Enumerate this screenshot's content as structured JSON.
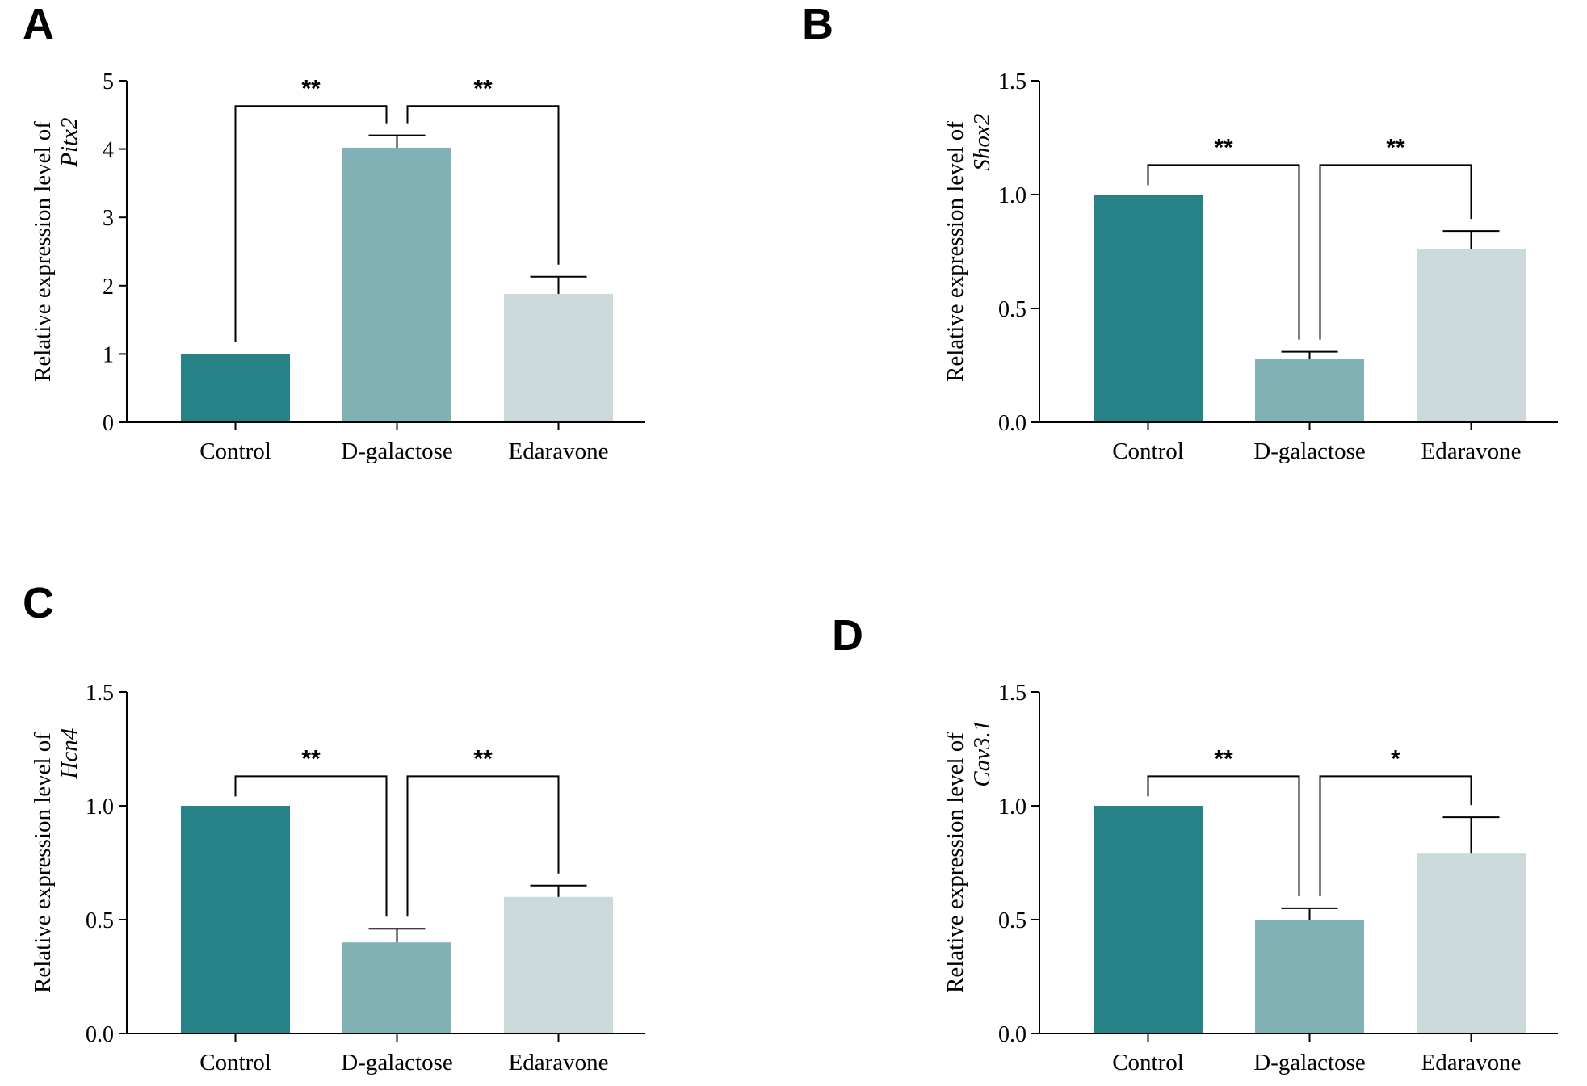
{
  "chart_data": [
    {
      "panel": "A",
      "type": "bar",
      "ylabel": "Relative expression level of",
      "gene": "Pitx2",
      "categories": [
        "Control",
        "D-galactose",
        "Edaravone"
      ],
      "values": [
        1.0,
        4.02,
        1.88
      ],
      "errors": [
        0.0,
        0.18,
        0.25
      ],
      "colors": [
        "#268286",
        "#80b1b4",
        "#ccd9db"
      ],
      "ylim": [
        0,
        5
      ],
      "yticks": [
        0,
        1,
        2,
        3,
        4,
        5
      ],
      "ytick_labels": [
        "0",
        "1",
        "2",
        "3",
        "4",
        "5"
      ],
      "significance": [
        {
          "from": 0,
          "to": 1,
          "label": "**"
        },
        {
          "from": 1,
          "to": 2,
          "label": "**"
        }
      ]
    },
    {
      "panel": "B",
      "type": "bar",
      "ylabel": "Relative expression level of",
      "gene": "Shox2",
      "categories": [
        "Control",
        "D-galactose",
        "Edaravone"
      ],
      "values": [
        1.0,
        0.28,
        0.76
      ],
      "errors": [
        0.0,
        0.03,
        0.08
      ],
      "colors": [
        "#268286",
        "#80b1b4",
        "#ccd9db"
      ],
      "ylim": [
        0,
        1.5
      ],
      "yticks": [
        0,
        0.5,
        1.0,
        1.5
      ],
      "ytick_labels": [
        "0.0",
        "0.5",
        "1.0",
        "1.5"
      ],
      "significance": [
        {
          "from": 0,
          "to": 1,
          "label": "**"
        },
        {
          "from": 1,
          "to": 2,
          "label": "**"
        }
      ]
    },
    {
      "panel": "C",
      "type": "bar",
      "ylabel": "Relative expression level of",
      "gene": "Hcn4",
      "categories": [
        "Control",
        "D-galactose",
        "Edaravone"
      ],
      "values": [
        1.0,
        0.4,
        0.6
      ],
      "errors": [
        0.0,
        0.06,
        0.05
      ],
      "colors": [
        "#268286",
        "#80b1b4",
        "#ccd9db"
      ],
      "ylim": [
        0,
        1.5
      ],
      "yticks": [
        0,
        0.5,
        1.0,
        1.5
      ],
      "ytick_labels": [
        "0.0",
        "0.5",
        "1.0",
        "1.5"
      ],
      "significance": [
        {
          "from": 0,
          "to": 1,
          "label": "**"
        },
        {
          "from": 1,
          "to": 2,
          "label": "**"
        }
      ]
    },
    {
      "panel": "D",
      "type": "bar",
      "ylabel": "Relative expression level of",
      "gene": "Cav3.1",
      "categories": [
        "Control",
        "D-galactose",
        "Edaravone"
      ],
      "values": [
        1.0,
        0.5,
        0.79
      ],
      "errors": [
        0.0,
        0.05,
        0.16
      ],
      "colors": [
        "#268286",
        "#80b1b4",
        "#ccd9db"
      ],
      "ylim": [
        0,
        1.5
      ],
      "yticks": [
        0,
        0.5,
        1.0,
        1.5
      ],
      "ytick_labels": [
        "0.0",
        "0.5",
        "1.0",
        "1.5"
      ],
      "significance": [
        {
          "from": 0,
          "to": 1,
          "label": "**"
        },
        {
          "from": 1,
          "to": 2,
          "label": "*"
        }
      ]
    }
  ]
}
